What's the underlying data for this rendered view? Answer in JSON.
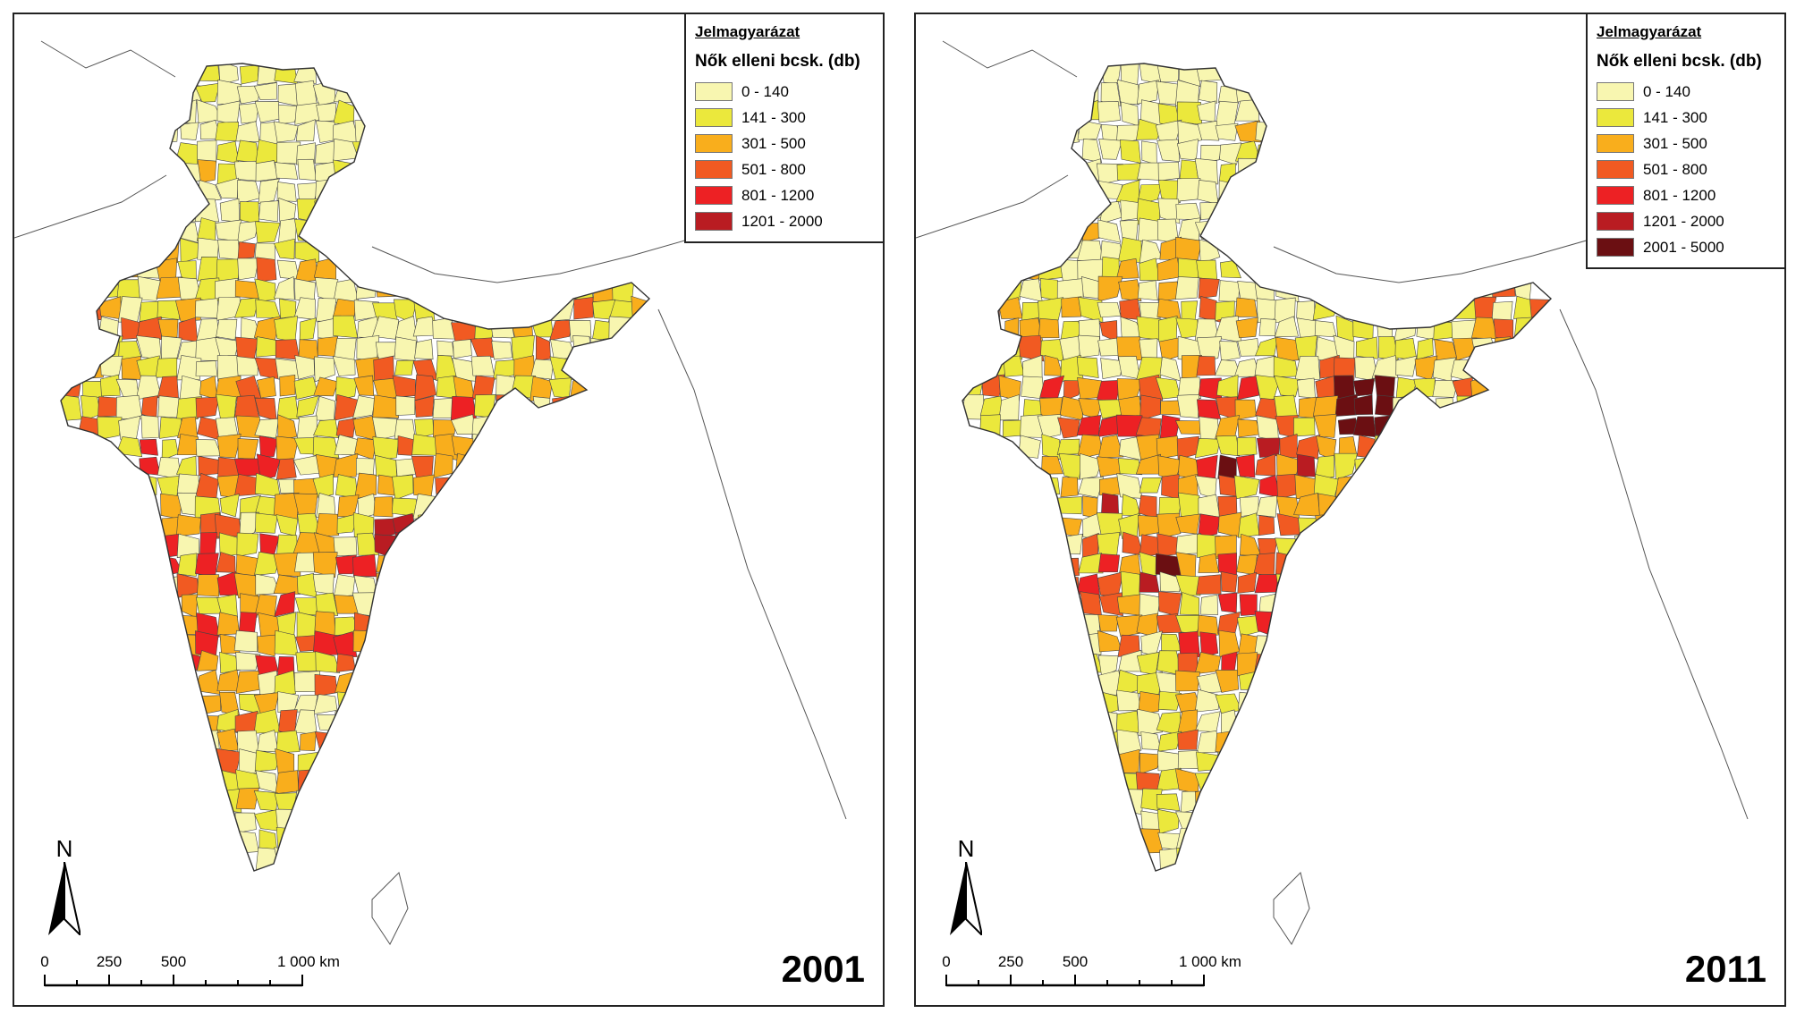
{
  "maps": [
    {
      "year": "2001",
      "legend": {
        "title": "Jelmagyarázat",
        "subtitle": "Nők elleni bcsk. (db)",
        "classes": [
          {
            "label": "0 - 140",
            "color": "#f8f6b0"
          },
          {
            "label": "141 - 300",
            "color": "#ebe83c"
          },
          {
            "label": "301 - 500",
            "color": "#f9ae1c"
          },
          {
            "label": "501 - 800",
            "color": "#f15a22"
          },
          {
            "label": "801 - 1200",
            "color": "#ed2124"
          },
          {
            "label": "1201 - 2000",
            "color": "#b91c22"
          }
        ]
      },
      "north_label": "N",
      "scale": {
        "labels": [
          "0",
          "250",
          "500",
          "1 000 km"
        ]
      }
    },
    {
      "year": "2011",
      "legend": {
        "title": "Jelmagyarázat",
        "subtitle": "Nők elleni bcsk. (db)",
        "classes": [
          {
            "label": "0 - 140",
            "color": "#f8f6b0"
          },
          {
            "label": "141 - 300",
            "color": "#ebe83c"
          },
          {
            "label": "301 - 500",
            "color": "#f9ae1c"
          },
          {
            "label": "501 - 800",
            "color": "#f15a22"
          },
          {
            "label": "801 - 1200",
            "color": "#ed2124"
          },
          {
            "label": "1201 - 2000",
            "color": "#b91c22"
          },
          {
            "label": "2001 - 5000",
            "color": "#6b0f12"
          }
        ]
      },
      "north_label": "N",
      "scale": {
        "labels": [
          "0",
          "250",
          "500",
          "1 000 km"
        ]
      }
    }
  ]
}
